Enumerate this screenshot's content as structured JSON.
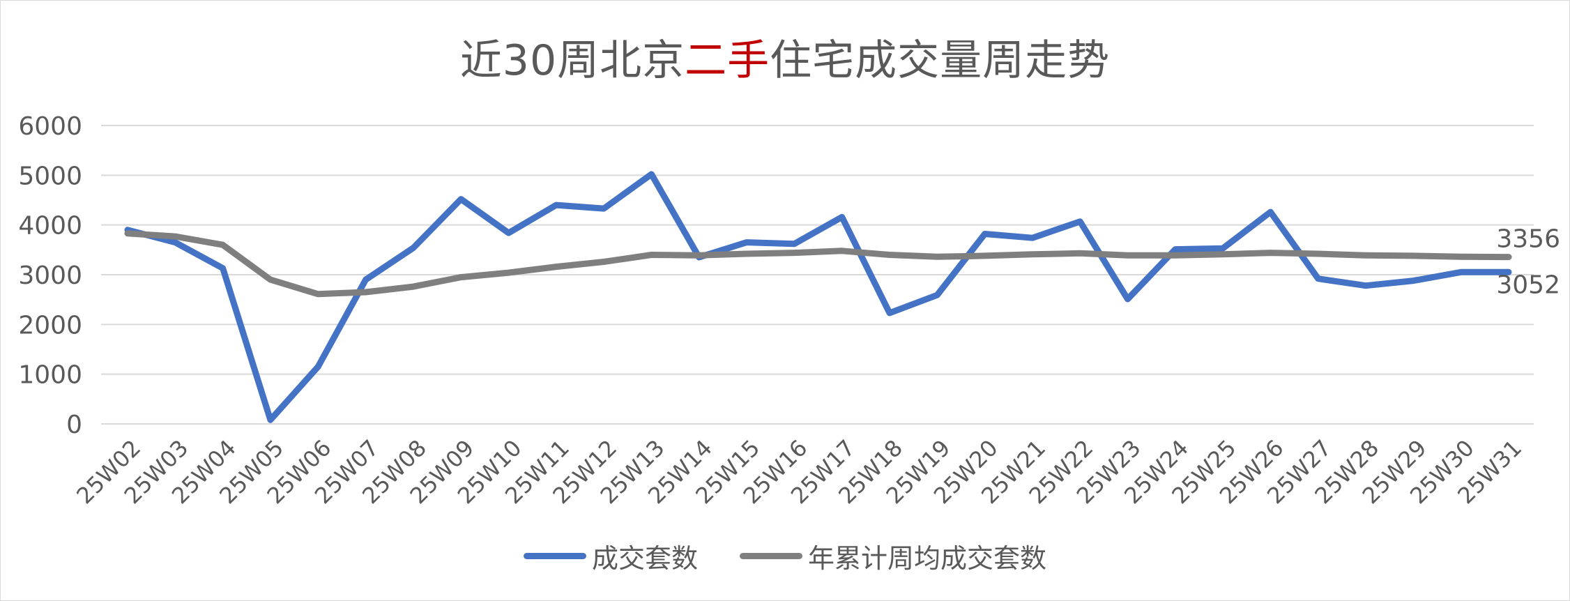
{
  "title": {
    "part1": "近30周北京",
    "accent": "二手",
    "part2": "住宅成交量周走势"
  },
  "colors": {
    "series_blue": "#4472c4",
    "series_gray": "#7f7f7f",
    "title_accent": "#c00000",
    "text": "#595959",
    "grid": "#d9d9d9"
  },
  "chart_data": {
    "type": "line",
    "title": "近30周北京二手住宅成交量周走势",
    "xlabel": "",
    "ylabel": "",
    "ylim": [
      0,
      6000
    ],
    "yticks": [
      0,
      1000,
      2000,
      3000,
      4000,
      5000,
      6000
    ],
    "grid": true,
    "legend_position": "bottom",
    "categories": [
      "25W02",
      "25W03",
      "25W04",
      "25W05",
      "25W06",
      "25W07",
      "25W08",
      "25W09",
      "25W10",
      "25W11",
      "25W12",
      "25W13",
      "25W14",
      "25W15",
      "25W16",
      "25W17",
      "25W18",
      "25W19",
      "25W20",
      "25W21",
      "25W22",
      "25W23",
      "25W24",
      "25W25",
      "25W26",
      "25W27",
      "25W28",
      "25W29",
      "25W30",
      "25W31"
    ],
    "series": [
      {
        "name": "成交套数",
        "color": "#4472c4",
        "values": [
          3900,
          3650,
          3130,
          80,
          1150,
          2900,
          3540,
          4520,
          3840,
          4400,
          4330,
          5020,
          3350,
          3650,
          3620,
          4160,
          2230,
          2590,
          3820,
          3740,
          4070,
          2510,
          3510,
          3530,
          4260,
          2920,
          2780,
          2880,
          3052,
          3052
        ]
      },
      {
        "name": "年累计周均成交套数",
        "color": "#7f7f7f",
        "values": [
          3830,
          3770,
          3600,
          2900,
          2610,
          2650,
          2760,
          2950,
          3040,
          3160,
          3260,
          3400,
          3390,
          3420,
          3440,
          3480,
          3400,
          3360,
          3380,
          3410,
          3430,
          3390,
          3390,
          3410,
          3440,
          3420,
          3390,
          3380,
          3360,
          3356
        ]
      }
    ],
    "end_labels": [
      "3356",
      "3052"
    ]
  }
}
